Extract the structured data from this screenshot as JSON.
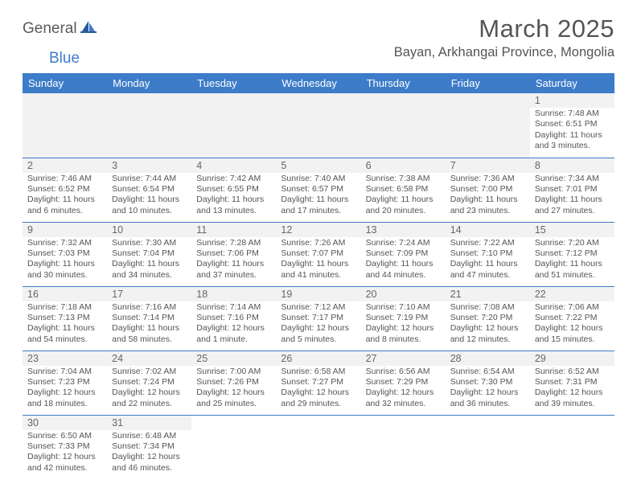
{
  "logo": {
    "part1": "General",
    "part2": "Blue"
  },
  "title": "March 2025",
  "location": "Bayan, Arkhangai Province, Mongolia",
  "colors": {
    "header_bg": "#3d7cc9",
    "header_text": "#ffffff",
    "text": "#555555",
    "daynum_bg": "#f2f2f2",
    "border": "#3d7cc9",
    "logo_accent": "#3d7cc9"
  },
  "weekdays": [
    "Sunday",
    "Monday",
    "Tuesday",
    "Wednesday",
    "Thursday",
    "Friday",
    "Saturday"
  ],
  "weeks": [
    [
      null,
      null,
      null,
      null,
      null,
      null,
      {
        "n": "1",
        "sunrise": "Sunrise: 7:48 AM",
        "sunset": "Sunset: 6:51 PM",
        "daylight": "Daylight: 11 hours and 3 minutes."
      }
    ],
    [
      {
        "n": "2",
        "sunrise": "Sunrise: 7:46 AM",
        "sunset": "Sunset: 6:52 PM",
        "daylight": "Daylight: 11 hours and 6 minutes."
      },
      {
        "n": "3",
        "sunrise": "Sunrise: 7:44 AM",
        "sunset": "Sunset: 6:54 PM",
        "daylight": "Daylight: 11 hours and 10 minutes."
      },
      {
        "n": "4",
        "sunrise": "Sunrise: 7:42 AM",
        "sunset": "Sunset: 6:55 PM",
        "daylight": "Daylight: 11 hours and 13 minutes."
      },
      {
        "n": "5",
        "sunrise": "Sunrise: 7:40 AM",
        "sunset": "Sunset: 6:57 PM",
        "daylight": "Daylight: 11 hours and 17 minutes."
      },
      {
        "n": "6",
        "sunrise": "Sunrise: 7:38 AM",
        "sunset": "Sunset: 6:58 PM",
        "daylight": "Daylight: 11 hours and 20 minutes."
      },
      {
        "n": "7",
        "sunrise": "Sunrise: 7:36 AM",
        "sunset": "Sunset: 7:00 PM",
        "daylight": "Daylight: 11 hours and 23 minutes."
      },
      {
        "n": "8",
        "sunrise": "Sunrise: 7:34 AM",
        "sunset": "Sunset: 7:01 PM",
        "daylight": "Daylight: 11 hours and 27 minutes."
      }
    ],
    [
      {
        "n": "9",
        "sunrise": "Sunrise: 7:32 AM",
        "sunset": "Sunset: 7:03 PM",
        "daylight": "Daylight: 11 hours and 30 minutes."
      },
      {
        "n": "10",
        "sunrise": "Sunrise: 7:30 AM",
        "sunset": "Sunset: 7:04 PM",
        "daylight": "Daylight: 11 hours and 34 minutes."
      },
      {
        "n": "11",
        "sunrise": "Sunrise: 7:28 AM",
        "sunset": "Sunset: 7:06 PM",
        "daylight": "Daylight: 11 hours and 37 minutes."
      },
      {
        "n": "12",
        "sunrise": "Sunrise: 7:26 AM",
        "sunset": "Sunset: 7:07 PM",
        "daylight": "Daylight: 11 hours and 41 minutes."
      },
      {
        "n": "13",
        "sunrise": "Sunrise: 7:24 AM",
        "sunset": "Sunset: 7:09 PM",
        "daylight": "Daylight: 11 hours and 44 minutes."
      },
      {
        "n": "14",
        "sunrise": "Sunrise: 7:22 AM",
        "sunset": "Sunset: 7:10 PM",
        "daylight": "Daylight: 11 hours and 47 minutes."
      },
      {
        "n": "15",
        "sunrise": "Sunrise: 7:20 AM",
        "sunset": "Sunset: 7:12 PM",
        "daylight": "Daylight: 11 hours and 51 minutes."
      }
    ],
    [
      {
        "n": "16",
        "sunrise": "Sunrise: 7:18 AM",
        "sunset": "Sunset: 7:13 PM",
        "daylight": "Daylight: 11 hours and 54 minutes."
      },
      {
        "n": "17",
        "sunrise": "Sunrise: 7:16 AM",
        "sunset": "Sunset: 7:14 PM",
        "daylight": "Daylight: 11 hours and 58 minutes."
      },
      {
        "n": "18",
        "sunrise": "Sunrise: 7:14 AM",
        "sunset": "Sunset: 7:16 PM",
        "daylight": "Daylight: 12 hours and 1 minute."
      },
      {
        "n": "19",
        "sunrise": "Sunrise: 7:12 AM",
        "sunset": "Sunset: 7:17 PM",
        "daylight": "Daylight: 12 hours and 5 minutes."
      },
      {
        "n": "20",
        "sunrise": "Sunrise: 7:10 AM",
        "sunset": "Sunset: 7:19 PM",
        "daylight": "Daylight: 12 hours and 8 minutes."
      },
      {
        "n": "21",
        "sunrise": "Sunrise: 7:08 AM",
        "sunset": "Sunset: 7:20 PM",
        "daylight": "Daylight: 12 hours and 12 minutes."
      },
      {
        "n": "22",
        "sunrise": "Sunrise: 7:06 AM",
        "sunset": "Sunset: 7:22 PM",
        "daylight": "Daylight: 12 hours and 15 minutes."
      }
    ],
    [
      {
        "n": "23",
        "sunrise": "Sunrise: 7:04 AM",
        "sunset": "Sunset: 7:23 PM",
        "daylight": "Daylight: 12 hours and 18 minutes."
      },
      {
        "n": "24",
        "sunrise": "Sunrise: 7:02 AM",
        "sunset": "Sunset: 7:24 PM",
        "daylight": "Daylight: 12 hours and 22 minutes."
      },
      {
        "n": "25",
        "sunrise": "Sunrise: 7:00 AM",
        "sunset": "Sunset: 7:26 PM",
        "daylight": "Daylight: 12 hours and 25 minutes."
      },
      {
        "n": "26",
        "sunrise": "Sunrise: 6:58 AM",
        "sunset": "Sunset: 7:27 PM",
        "daylight": "Daylight: 12 hours and 29 minutes."
      },
      {
        "n": "27",
        "sunrise": "Sunrise: 6:56 AM",
        "sunset": "Sunset: 7:29 PM",
        "daylight": "Daylight: 12 hours and 32 minutes."
      },
      {
        "n": "28",
        "sunrise": "Sunrise: 6:54 AM",
        "sunset": "Sunset: 7:30 PM",
        "daylight": "Daylight: 12 hours and 36 minutes."
      },
      {
        "n": "29",
        "sunrise": "Sunrise: 6:52 AM",
        "sunset": "Sunset: 7:31 PM",
        "daylight": "Daylight: 12 hours and 39 minutes."
      }
    ],
    [
      {
        "n": "30",
        "sunrise": "Sunrise: 6:50 AM",
        "sunset": "Sunset: 7:33 PM",
        "daylight": "Daylight: 12 hours and 42 minutes."
      },
      {
        "n": "31",
        "sunrise": "Sunrise: 6:48 AM",
        "sunset": "Sunset: 7:34 PM",
        "daylight": "Daylight: 12 hours and 46 minutes."
      },
      null,
      null,
      null,
      null,
      null
    ]
  ]
}
